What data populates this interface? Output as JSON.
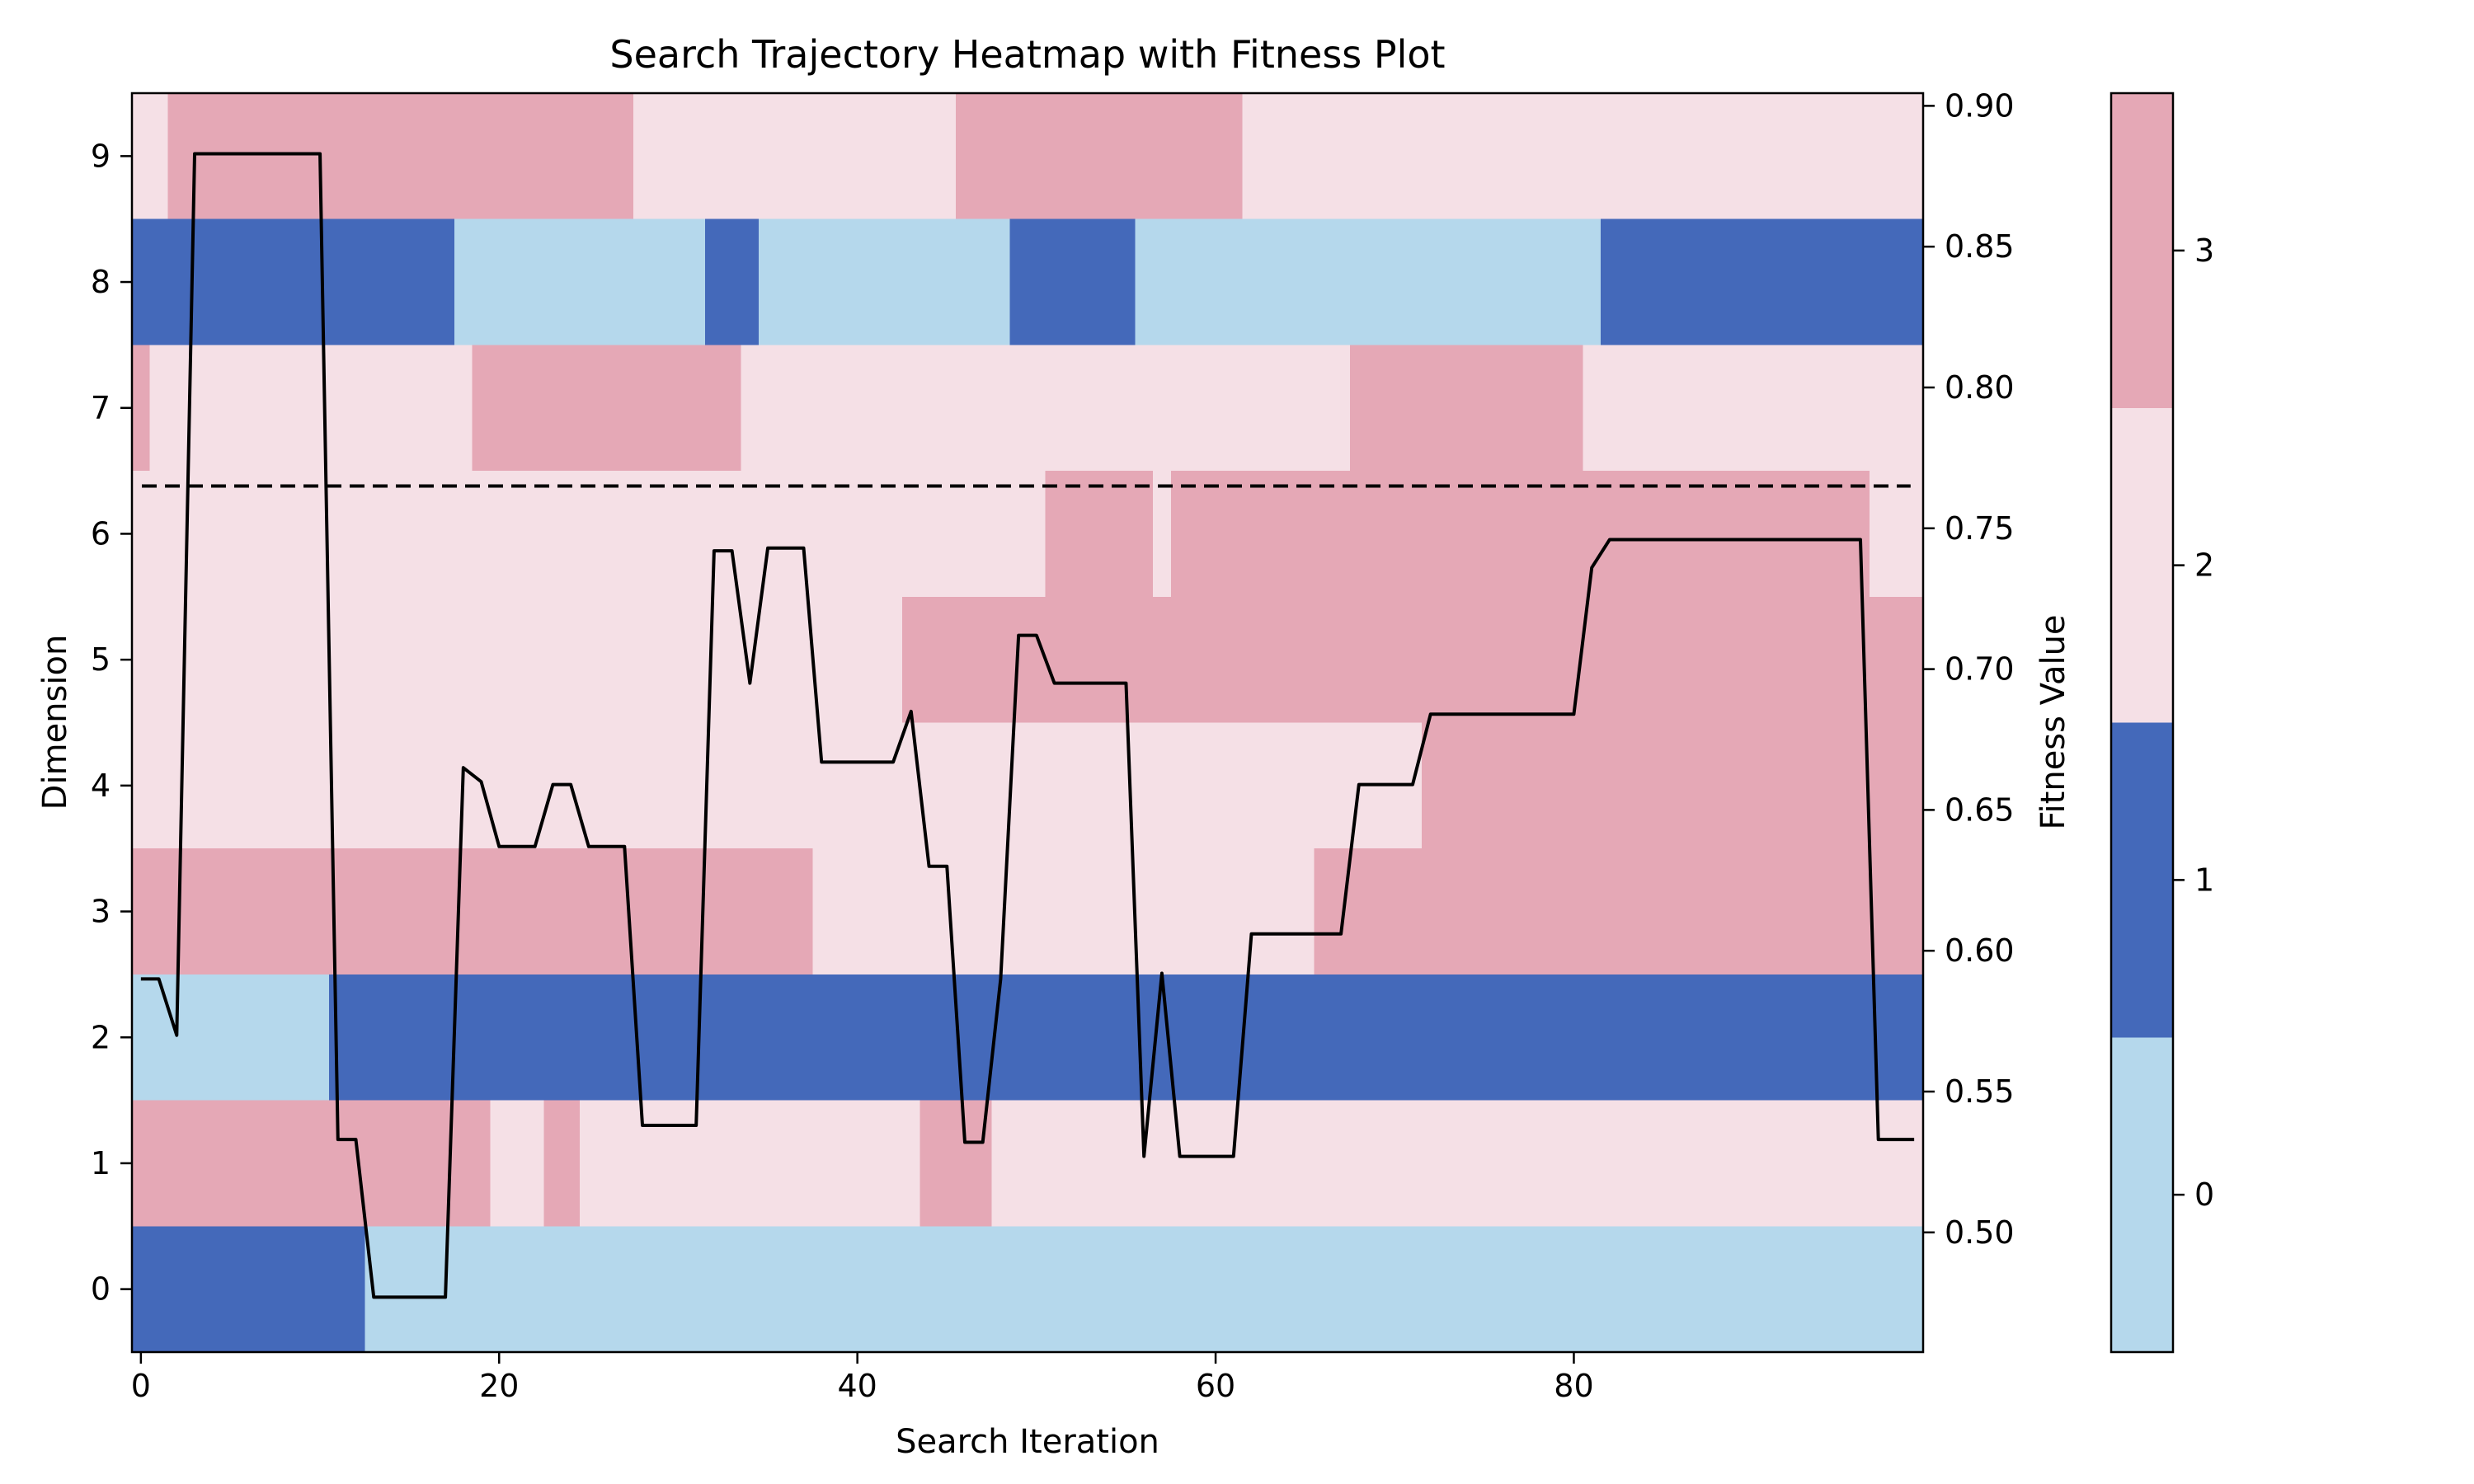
{
  "chart_data": {
    "type": "heatmap",
    "title": "Search Trajectory Heatmap with Fitness Plot",
    "xlabel": "Search Iteration",
    "ylabel": "Dimension",
    "y2label": "Fitness Value",
    "xlim": [
      -0.5,
      99.5
    ],
    "ylim": [
      -0.5,
      9.5
    ],
    "y2lim": [
      0.4575,
      0.9045
    ],
    "x_ticks": [
      0,
      20,
      40,
      60,
      80
    ],
    "y_ticks": [
      0,
      1,
      2,
      3,
      4,
      5,
      6,
      7,
      8,
      9
    ],
    "y2_ticks": [
      0.5,
      0.55,
      0.6,
      0.65,
      0.7,
      0.75,
      0.8,
      0.85,
      0.9
    ],
    "x_tick_labels": [
      "0",
      "20",
      "40",
      "60",
      "80"
    ],
    "y_tick_labels": [
      "0",
      "1",
      "2",
      "3",
      "4",
      "5",
      "6",
      "7",
      "8",
      "9"
    ],
    "y2_tick_labels": [
      "0.50",
      "0.55",
      "0.60",
      "0.65",
      "0.70",
      "0.75",
      "0.80",
      "0.85",
      "0.90"
    ],
    "n_iterations": 100,
    "state_colors": [
      "#b5d8ec",
      "#4469ba",
      "#f5e0e6",
      "#e5a8b6"
    ],
    "colorbar_tick_labels": [
      "0",
      "1",
      "2",
      "3"
    ],
    "heatmap_runs": [
      [
        [
          0,
          12,
          1
        ],
        [
          13,
          99,
          0
        ]
      ],
      [
        [
          0,
          19,
          3
        ],
        [
          20,
          22,
          2
        ],
        [
          23,
          24,
          3
        ],
        [
          25,
          43,
          2
        ],
        [
          44,
          47,
          3
        ],
        [
          48,
          99,
          2
        ]
      ],
      [
        [
          0,
          10,
          0
        ],
        [
          11,
          99,
          1
        ]
      ],
      [
        [
          0,
          37,
          3
        ],
        [
          38,
          65,
          2
        ],
        [
          66,
          99,
          3
        ]
      ],
      [
        [
          0,
          71,
          2
        ],
        [
          72,
          99,
          3
        ]
      ],
      [
        [
          0,
          42,
          2
        ],
        [
          43,
          99,
          3
        ]
      ],
      [
        [
          0,
          50,
          2
        ],
        [
          51,
          56,
          3
        ],
        [
          57,
          57,
          2
        ],
        [
          58,
          96,
          3
        ],
        [
          97,
          99,
          2
        ]
      ],
      [
        [
          0,
          0,
          3
        ],
        [
          1,
          18,
          2
        ],
        [
          19,
          33,
          3
        ],
        [
          34,
          67,
          2
        ],
        [
          68,
          80,
          3
        ],
        [
          81,
          99,
          2
        ]
      ],
      [
        [
          0,
          17,
          1
        ],
        [
          18,
          31,
          0
        ],
        [
          32,
          34,
          1
        ],
        [
          35,
          48,
          0
        ],
        [
          49,
          55,
          1
        ],
        [
          56,
          81,
          0
        ],
        [
          82,
          99,
          1
        ]
      ],
      [
        [
          0,
          1,
          2
        ],
        [
          2,
          27,
          3
        ],
        [
          28,
          45,
          2
        ],
        [
          46,
          61,
          3
        ],
        [
          62,
          99,
          2
        ]
      ]
    ],
    "fitness": [
      0.59,
      0.59,
      0.57,
      0.883,
      0.883,
      0.883,
      0.883,
      0.883,
      0.883,
      0.883,
      0.883,
      0.533,
      0.533,
      0.477,
      0.477,
      0.477,
      0.477,
      0.477,
      0.665,
      0.66,
      0.637,
      0.637,
      0.637,
      0.659,
      0.659,
      0.637,
      0.637,
      0.637,
      0.538,
      0.538,
      0.538,
      0.538,
      0.742,
      0.742,
      0.695,
      0.743,
      0.743,
      0.743,
      0.667,
      0.667,
      0.667,
      0.667,
      0.667,
      0.685,
      0.63,
      0.63,
      0.532,
      0.532,
      0.59,
      0.712,
      0.712,
      0.695,
      0.695,
      0.695,
      0.695,
      0.695,
      0.527,
      0.592,
      0.527,
      0.527,
      0.527,
      0.527,
      0.606,
      0.606,
      0.606,
      0.606,
      0.606,
      0.606,
      0.659,
      0.659,
      0.659,
      0.659,
      0.684,
      0.684,
      0.684,
      0.684,
      0.684,
      0.684,
      0.684,
      0.684,
      0.684,
      0.736,
      0.746,
      0.746,
      0.746,
      0.746,
      0.746,
      0.746,
      0.746,
      0.746,
      0.746,
      0.746,
      0.746,
      0.746,
      0.746,
      0.746,
      0.746,
      0.533,
      0.533,
      0.533
    ],
    "reference_line": 0.765,
    "grid": false,
    "colorbar": "right"
  }
}
